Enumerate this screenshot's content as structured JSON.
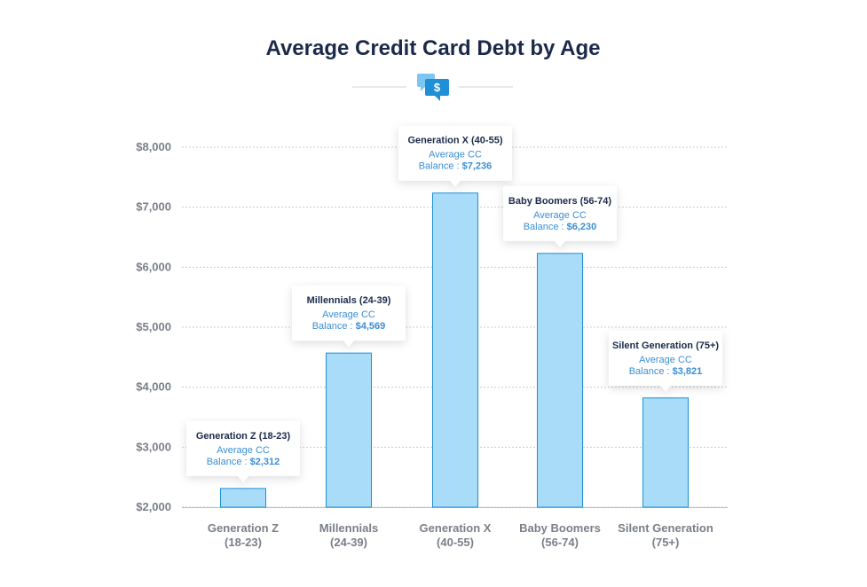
{
  "chart_data": {
    "type": "bar",
    "title": "Average Credit Card Debt by Age",
    "categories": [
      [
        "Generation Z",
        "(18-23)"
      ],
      [
        "Millennials",
        "(24-39)"
      ],
      [
        "Generation X",
        "(40-55)"
      ],
      [
        "Baby Boomers",
        "(56-74)"
      ],
      [
        "Silent Generation",
        "(75+)"
      ]
    ],
    "values": [
      2312,
      4569,
      7236,
      6230,
      3821
    ],
    "ylim": [
      2000,
      8000
    ],
    "yticks": [
      2000,
      3000,
      4000,
      5000,
      6000,
      7000,
      8000
    ],
    "ytick_labels": [
      "$2,000",
      "$3,000",
      "$4,000",
      "$5,000",
      "$6,000",
      "$7,000",
      "$8,000"
    ],
    "grid": true,
    "annotations": [
      {
        "title": "Generation Z (18-23)",
        "line1": "Average CC",
        "line2_prefix": "Balance : ",
        "line2_value": "$2,312"
      },
      {
        "title": "Millennials (24-39)",
        "line1": "Average CC",
        "line2_prefix": "Balance : ",
        "line2_value": "$4,569"
      },
      {
        "title": "Generation X (40-55)",
        "line1": "Average CC",
        "line2_prefix": "Balance : ",
        "line2_value": "$7,236"
      },
      {
        "title": "Baby Boomers (56-74)",
        "line1": "Average CC",
        "line2_prefix": "Balance : ",
        "line2_value": "$6,230"
      },
      {
        "title": "Silent Generation (75+)",
        "line1": "Average CC",
        "line2_prefix": "Balance : ",
        "line2_value": "$3,821"
      }
    ],
    "header_icon": "dollar-chat-icon",
    "colors": {
      "bar_fill": "#a8dcf8",
      "bar_stroke": "#1f8fd6",
      "title": "#1c2a4a",
      "accent": "#3a8fd6",
      "grid": "#c9ccd1",
      "axis_text": "#7a7f88"
    }
  }
}
